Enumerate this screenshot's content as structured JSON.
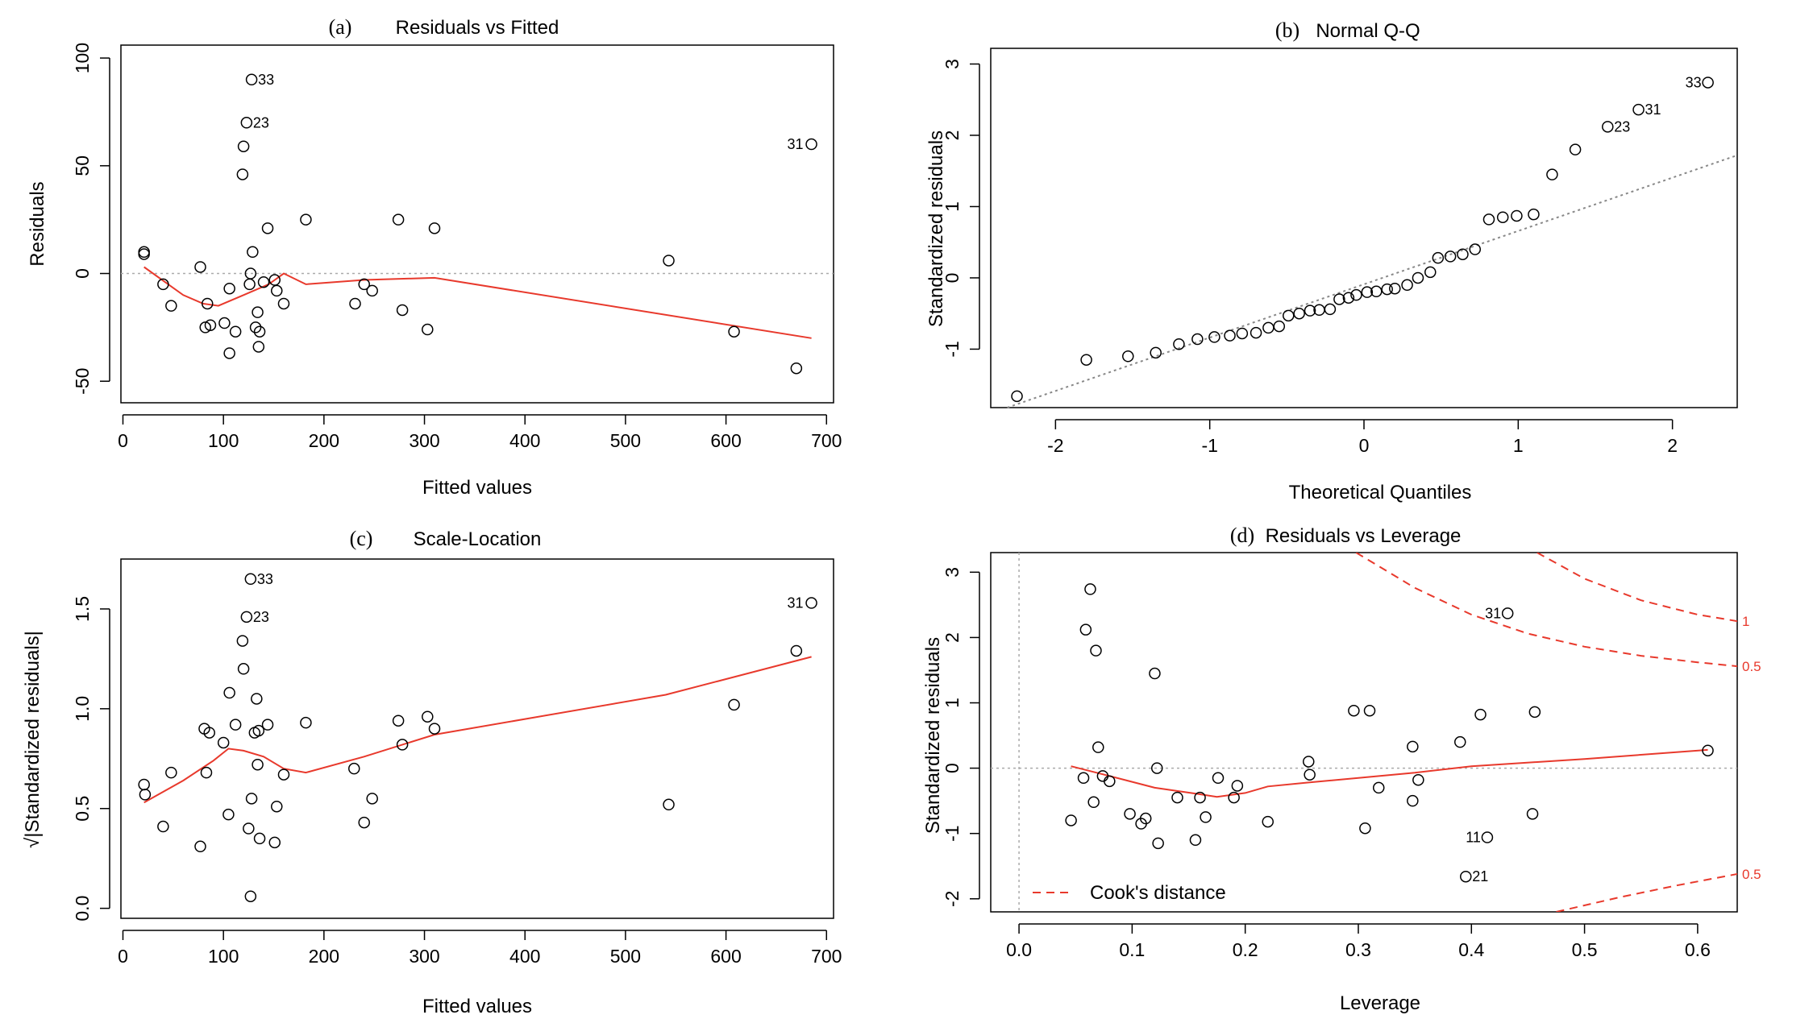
{
  "chart_data": [
    {
      "panel": "(a)",
      "type": "scatter",
      "title": "Residuals vs Fitted",
      "xlabel": "Fitted values",
      "ylabel": "Residuals",
      "xlim": [
        -2,
        707
      ],
      "ylim": [
        -60,
        106
      ],
      "xticks": [
        0,
        100,
        200,
        300,
        400,
        500,
        600,
        700
      ],
      "yticks": [
        -50,
        0,
        50,
        100
      ],
      "hline": {
        "y": 0,
        "style": "dotted",
        "color": "#aaaaaa"
      },
      "points": [
        {
          "x": 21,
          "y": 10
        },
        {
          "x": 21,
          "y": 9
        },
        {
          "x": 40,
          "y": -5
        },
        {
          "x": 48,
          "y": -15
        },
        {
          "x": 77,
          "y": 3
        },
        {
          "x": 82,
          "y": -25
        },
        {
          "x": 84,
          "y": -14
        },
        {
          "x": 87,
          "y": -24
        },
        {
          "x": 101,
          "y": -23
        },
        {
          "x": 106,
          "y": -7
        },
        {
          "x": 106,
          "y": -37
        },
        {
          "x": 112,
          "y": -27
        },
        {
          "x": 119,
          "y": 46
        },
        {
          "x": 120,
          "y": 59
        },
        {
          "x": 126,
          "y": -5
        },
        {
          "x": 127,
          "y": 0
        },
        {
          "x": 129,
          "y": 10
        },
        {
          "x": 132,
          "y": -25
        },
        {
          "x": 134,
          "y": -18
        },
        {
          "x": 135,
          "y": -34
        },
        {
          "x": 136,
          "y": -27
        },
        {
          "x": 140,
          "y": -4
        },
        {
          "x": 144,
          "y": 21
        },
        {
          "x": 151,
          "y": -3
        },
        {
          "x": 153,
          "y": -8
        },
        {
          "x": 160,
          "y": -14
        },
        {
          "x": 182,
          "y": 25
        },
        {
          "x": 231,
          "y": -14
        },
        {
          "x": 240,
          "y": -5
        },
        {
          "x": 248,
          "y": -8
        },
        {
          "x": 274,
          "y": 25
        },
        {
          "x": 278,
          "y": -17
        },
        {
          "x": 303,
          "y": -26
        },
        {
          "x": 310,
          "y": 21
        },
        {
          "x": 543,
          "y": 6
        },
        {
          "x": 608,
          "y": -27
        },
        {
          "x": 670,
          "y": -44
        }
      ],
      "labeled_points": [
        {
          "x": 128,
          "y": 90,
          "label": "33"
        },
        {
          "x": 123,
          "y": 70,
          "label": "23"
        },
        {
          "x": 685,
          "y": 60,
          "label": "31"
        }
      ],
      "smoother": [
        [
          21,
          3
        ],
        [
          60,
          -10
        ],
        [
          80,
          -14
        ],
        [
          95,
          -15
        ],
        [
          120,
          -10
        ],
        [
          145,
          -5
        ],
        [
          160,
          0
        ],
        [
          182,
          -5
        ],
        [
          240,
          -3
        ],
        [
          310,
          -2
        ],
        [
          685,
          -30
        ]
      ]
    },
    {
      "panel": "(b)",
      "type": "scatter",
      "title": "Normal Q-Q",
      "xlabel": "Theoretical Quantiles",
      "ylabel": "Standardized residuals",
      "xlim": [
        -2.42,
        2.42
      ],
      "ylim": [
        -1.82,
        3.22
      ],
      "xticks": [
        -2,
        -1,
        0,
        1,
        2
      ],
      "yticks": [
        -1,
        0,
        1,
        2,
        3
      ],
      "reference_line": {
        "x1": -2.42,
        "y1": -1.9,
        "x2": 2.42,
        "y2": 1.72,
        "style": "dotted",
        "color": "#888888"
      },
      "points": [
        {
          "x": -2.25,
          "y": -1.66
        },
        {
          "x": -1.8,
          "y": -1.15
        },
        {
          "x": -1.53,
          "y": -1.1
        },
        {
          "x": -1.35,
          "y": -1.05
        },
        {
          "x": -1.2,
          "y": -0.93
        },
        {
          "x": -1.08,
          "y": -0.86
        },
        {
          "x": -0.97,
          "y": -0.83
        },
        {
          "x": -0.87,
          "y": -0.81
        },
        {
          "x": -0.79,
          "y": -0.78
        },
        {
          "x": -0.7,
          "y": -0.77
        },
        {
          "x": -0.62,
          "y": -0.7
        },
        {
          "x": -0.55,
          "y": -0.68
        },
        {
          "x": -0.49,
          "y": -0.53
        },
        {
          "x": -0.42,
          "y": -0.5
        },
        {
          "x": -0.35,
          "y": -0.46
        },
        {
          "x": -0.29,
          "y": -0.45
        },
        {
          "x": -0.22,
          "y": -0.44
        },
        {
          "x": -0.16,
          "y": -0.3
        },
        {
          "x": -0.1,
          "y": -0.28
        },
        {
          "x": -0.05,
          "y": -0.24
        },
        {
          "x": 0.02,
          "y": -0.2
        },
        {
          "x": 0.08,
          "y": -0.19
        },
        {
          "x": 0.15,
          "y": -0.16
        },
        {
          "x": 0.2,
          "y": -0.15
        },
        {
          "x": 0.28,
          "y": -0.1
        },
        {
          "x": 0.35,
          "y": 0.0
        },
        {
          "x": 0.43,
          "y": 0.08
        },
        {
          "x": 0.48,
          "y": 0.28
        },
        {
          "x": 0.56,
          "y": 0.3
        },
        {
          "x": 0.64,
          "y": 0.33
        },
        {
          "x": 0.72,
          "y": 0.4
        },
        {
          "x": 0.81,
          "y": 0.82
        },
        {
          "x": 0.9,
          "y": 0.85
        },
        {
          "x": 0.99,
          "y": 0.87
        },
        {
          "x": 1.1,
          "y": 0.89
        },
        {
          "x": 1.22,
          "y": 1.45
        },
        {
          "x": 1.37,
          "y": 1.8
        }
      ],
      "labeled_points": [
        {
          "x": 1.58,
          "y": 2.12,
          "label": "23"
        },
        {
          "x": 1.78,
          "y": 2.36,
          "label": "31"
        },
        {
          "x": 2.23,
          "y": 2.74,
          "label": "33"
        }
      ]
    },
    {
      "panel": "(c)",
      "type": "scatter",
      "title": "Scale-Location",
      "xlabel": "Fitted values",
      "ylabel": "√|Standardized residuals|",
      "xlim": [
        -2,
        707
      ],
      "ylim": [
        -0.05,
        1.75
      ],
      "xticks": [
        0,
        100,
        200,
        300,
        400,
        500,
        600,
        700
      ],
      "yticks": [
        0.0,
        0.5,
        1.0,
        1.5
      ],
      "ytick_labels": [
        "0.0",
        "0.5",
        "1.0",
        "1.5"
      ],
      "points": [
        {
          "x": 21,
          "y": 0.62
        },
        {
          "x": 22,
          "y": 0.57
        },
        {
          "x": 40,
          "y": 0.41
        },
        {
          "x": 48,
          "y": 0.68
        },
        {
          "x": 77,
          "y": 0.31
        },
        {
          "x": 81,
          "y": 0.9
        },
        {
          "x": 83,
          "y": 0.68
        },
        {
          "x": 86,
          "y": 0.88
        },
        {
          "x": 100,
          "y": 0.83
        },
        {
          "x": 105,
          "y": 0.47
        },
        {
          "x": 106,
          "y": 1.08
        },
        {
          "x": 112,
          "y": 0.92
        },
        {
          "x": 119,
          "y": 1.34
        },
        {
          "x": 120,
          "y": 1.2
        },
        {
          "x": 125,
          "y": 0.4
        },
        {
          "x": 127,
          "y": 0.06
        },
        {
          "x": 128,
          "y": 0.55
        },
        {
          "x": 131,
          "y": 0.88
        },
        {
          "x": 133,
          "y": 1.05
        },
        {
          "x": 134,
          "y": 0.72
        },
        {
          "x": 135,
          "y": 0.89
        },
        {
          "x": 136,
          "y": 0.35
        },
        {
          "x": 144,
          "y": 0.92
        },
        {
          "x": 151,
          "y": 0.33
        },
        {
          "x": 153,
          "y": 0.51
        },
        {
          "x": 160,
          "y": 0.67
        },
        {
          "x": 182,
          "y": 0.93
        },
        {
          "x": 230,
          "y": 0.7
        },
        {
          "x": 240,
          "y": 0.43
        },
        {
          "x": 248,
          "y": 0.55
        },
        {
          "x": 274,
          "y": 0.94
        },
        {
          "x": 278,
          "y": 0.82
        },
        {
          "x": 303,
          "y": 0.96
        },
        {
          "x": 310,
          "y": 0.9
        },
        {
          "x": 543,
          "y": 0.52
        },
        {
          "x": 608,
          "y": 1.02
        },
        {
          "x": 670,
          "y": 1.29
        }
      ],
      "labeled_points": [
        {
          "x": 127,
          "y": 1.65,
          "label": "33"
        },
        {
          "x": 123,
          "y": 1.46,
          "label": "23"
        },
        {
          "x": 685,
          "y": 1.53,
          "label": "31"
        }
      ],
      "smoother": [
        [
          21,
          0.53
        ],
        [
          60,
          0.64
        ],
        [
          90,
          0.74
        ],
        [
          105,
          0.8
        ],
        [
          120,
          0.79
        ],
        [
          140,
          0.76
        ],
        [
          160,
          0.7
        ],
        [
          182,
          0.68
        ],
        [
          240,
          0.76
        ],
        [
          310,
          0.87
        ],
        [
          540,
          1.07
        ],
        [
          685,
          1.26
        ]
      ]
    },
    {
      "panel": "(d)",
      "type": "scatter",
      "title": "Residuals vs Leverage",
      "xlabel": "Leverage",
      "ylabel": "Standardized residuals",
      "xlim": [
        -0.025,
        0.635
      ],
      "ylim": [
        -2.2,
        3.3
      ],
      "xticks": [
        0.0,
        0.1,
        0.2,
        0.3,
        0.4,
        0.5,
        0.6
      ],
      "xtick_labels": [
        "0.0",
        "0.1",
        "0.2",
        "0.3",
        "0.4",
        "0.5",
        "0.6"
      ],
      "yticks": [
        -2,
        -1,
        0,
        1,
        2,
        3
      ],
      "hline": {
        "y": 0,
        "style": "dotted",
        "color": "#aaaaaa"
      },
      "vline": {
        "x": 0,
        "style": "dotted",
        "color": "#aaaaaa"
      },
      "points": [
        {
          "x": 0.046,
          "y": -0.8
        },
        {
          "x": 0.057,
          "y": -0.15
        },
        {
          "x": 0.059,
          "y": 2.12
        },
        {
          "x": 0.063,
          "y": 2.74
        },
        {
          "x": 0.066,
          "y": -0.52
        },
        {
          "x": 0.068,
          "y": 1.8
        },
        {
          "x": 0.07,
          "y": 0.32
        },
        {
          "x": 0.074,
          "y": -0.12
        },
        {
          "x": 0.08,
          "y": -0.2
        },
        {
          "x": 0.098,
          "y": -0.7
        },
        {
          "x": 0.108,
          "y": -0.85
        },
        {
          "x": 0.112,
          "y": -0.77
        },
        {
          "x": 0.12,
          "y": 1.45
        },
        {
          "x": 0.122,
          "y": 0.0
        },
        {
          "x": 0.123,
          "y": -1.15
        },
        {
          "x": 0.14,
          "y": -0.45
        },
        {
          "x": 0.156,
          "y": -1.1
        },
        {
          "x": 0.16,
          "y": -0.45
        },
        {
          "x": 0.165,
          "y": -0.75
        },
        {
          "x": 0.176,
          "y": -0.15
        },
        {
          "x": 0.19,
          "y": -0.45
        },
        {
          "x": 0.193,
          "y": -0.27
        },
        {
          "x": 0.22,
          "y": -0.82
        },
        {
          "x": 0.256,
          "y": 0.1
        },
        {
          "x": 0.257,
          "y": -0.1
        },
        {
          "x": 0.296,
          "y": 0.88
        },
        {
          "x": 0.306,
          "y": -0.92
        },
        {
          "x": 0.31,
          "y": 0.88
        },
        {
          "x": 0.318,
          "y": -0.3
        },
        {
          "x": 0.348,
          "y": 0.33
        },
        {
          "x": 0.348,
          "y": -0.5
        },
        {
          "x": 0.353,
          "y": -0.18
        },
        {
          "x": 0.39,
          "y": 0.4
        },
        {
          "x": 0.408,
          "y": 0.82
        },
        {
          "x": 0.454,
          "y": -0.7
        },
        {
          "x": 0.456,
          "y": 0.86
        },
        {
          "x": 0.609,
          "y": 0.27
        }
      ],
      "labeled_points": [
        {
          "x": 0.432,
          "y": 2.37,
          "label": "31"
        },
        {
          "x": 0.414,
          "y": -1.06,
          "label": "11"
        },
        {
          "x": 0.395,
          "y": -1.66,
          "label": "21"
        }
      ],
      "smoother": [
        [
          0.046,
          0.03
        ],
        [
          0.08,
          -0.12
        ],
        [
          0.12,
          -0.3
        ],
        [
          0.16,
          -0.4
        ],
        [
          0.175,
          -0.44
        ],
        [
          0.2,
          -0.38
        ],
        [
          0.22,
          -0.28
        ],
        [
          0.256,
          -0.22
        ],
        [
          0.3,
          -0.15
        ],
        [
          0.35,
          -0.07
        ],
        [
          0.4,
          0.03
        ],
        [
          0.5,
          0.14
        ],
        [
          0.609,
          0.28
        ]
      ],
      "cooks_contours": [
        {
          "level": 1,
          "label": "1",
          "points": [
            [
              0.458,
              3.3
            ],
            [
              0.5,
              2.9
            ],
            [
              0.55,
              2.57
            ],
            [
              0.6,
              2.35
            ],
            [
              0.635,
              2.25
            ]
          ]
        },
        {
          "level": 0.5,
          "label": "0.5",
          "points": [
            [
              0.298,
              3.3
            ],
            [
              0.35,
              2.76
            ],
            [
              0.4,
              2.35
            ],
            [
              0.45,
              2.06
            ],
            [
              0.5,
              1.86
            ],
            [
              0.55,
              1.72
            ],
            [
              0.6,
              1.62
            ],
            [
              0.635,
              1.56
            ]
          ]
        },
        {
          "level": -0.5,
          "label": "0.5",
          "points": [
            [
              0.475,
              -2.2
            ],
            [
              0.53,
              -1.98
            ],
            [
              0.58,
              -1.8
            ],
            [
              0.635,
              -1.62
            ]
          ]
        }
      ],
      "legend": {
        "label": "Cook's distance",
        "position": "bottom-left",
        "style": "dashed",
        "color": "#e8392c"
      }
    }
  ]
}
